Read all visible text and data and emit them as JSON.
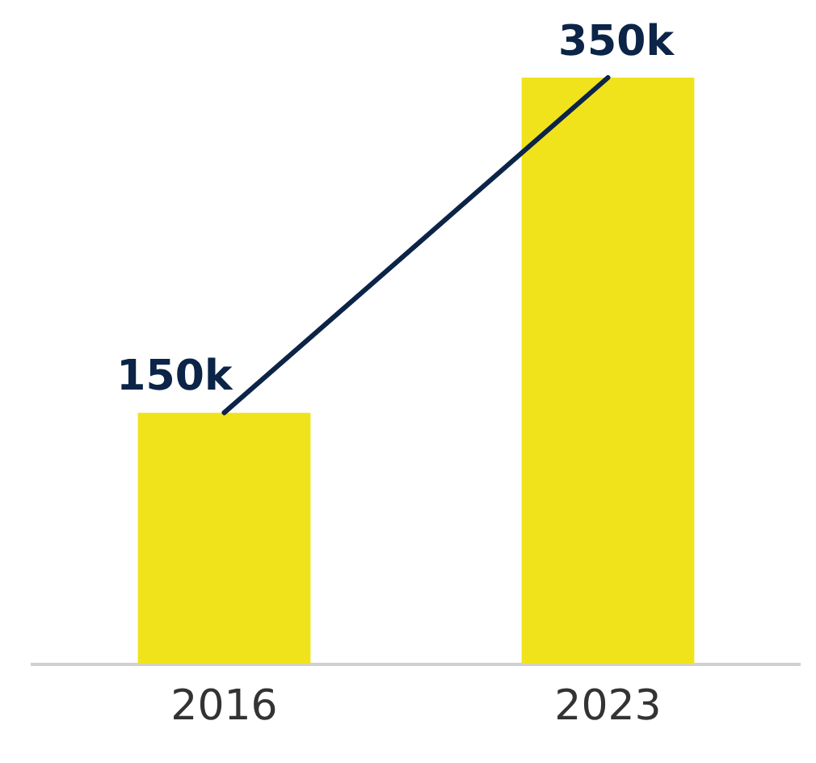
{
  "chart_data": {
    "type": "bar",
    "categories": [
      "2016",
      "2023"
    ],
    "series": [
      {
        "color": "#f0e31c",
        "values": [
          150000,
          350000
        ],
        "value_labels": [
          "150k",
          "350k"
        ]
      },
      {
        "type": "line",
        "color": "#0b2447",
        "values": [
          150000,
          350000
        ]
      }
    ],
    "grid": false,
    "legend": false,
    "tick_labels": "x"
  }
}
